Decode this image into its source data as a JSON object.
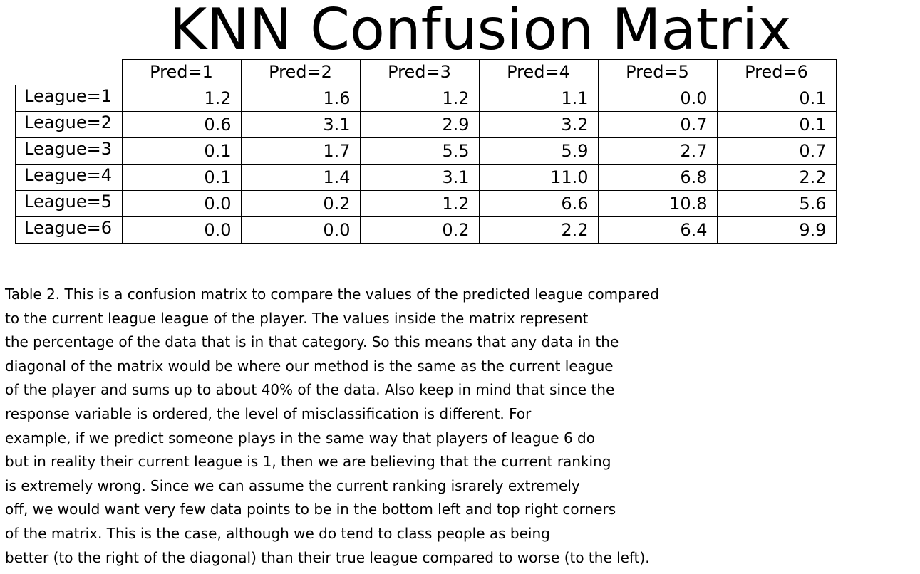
{
  "chart_data": {
    "type": "table",
    "title": "KNN Confusion Matrix",
    "columns": [
      "Pred=1",
      "Pred=2",
      "Pred=3",
      "Pred=4",
      "Pred=5",
      "Pred=6"
    ],
    "rows": [
      {
        "label": "League=1",
        "values": [
          "1.2",
          "1.6",
          "1.2",
          "1.1",
          "0.0",
          "0.1"
        ]
      },
      {
        "label": "League=2",
        "values": [
          "0.6",
          "3.1",
          "2.9",
          "3.2",
          "0.7",
          "0.1"
        ]
      },
      {
        "label": "League=3",
        "values": [
          "0.1",
          "1.7",
          "5.5",
          "5.9",
          "2.7",
          "0.7"
        ]
      },
      {
        "label": "League=4",
        "values": [
          "0.1",
          "1.4",
          "3.1",
          "11.0",
          "6.8",
          "2.2"
        ]
      },
      {
        "label": "League=5",
        "values": [
          "0.0",
          "0.2",
          "1.2",
          "6.6",
          "10.8",
          "5.6"
        ]
      },
      {
        "label": "League=6",
        "values": [
          "0.0",
          "0.0",
          "0.2",
          "2.2",
          "6.4",
          "9.9"
        ]
      }
    ]
  },
  "caption": {
    "lines": [
      "Table 2. This is a confusion matrix to compare the values of the predicted league compared",
      "to the current league league of the player. The values inside the matrix represent",
      "the percentage of the data that is in that category. So this means that any data in the",
      "diagonal of the matrix would be where our method is the same as the current league",
      "of the player and sums up to about 40% of the data. Also keep in mind that since the",
      "response variable is ordered, the level of misclassification is different. For",
      "example, if we predict someone plays in the same way that players of league 6 do",
      "but in reality their current league is 1, then we are believing that the current ranking",
      "is extremely wrong. Since we can assume the current ranking israrely extremely",
      "off, we would want very few data points to be in the bottom left and top right corners",
      "of the matrix. This is the case, although we do tend to class people as being",
      "better (to the right of the diagonal) than their true league compared to worse (to the left)."
    ]
  }
}
